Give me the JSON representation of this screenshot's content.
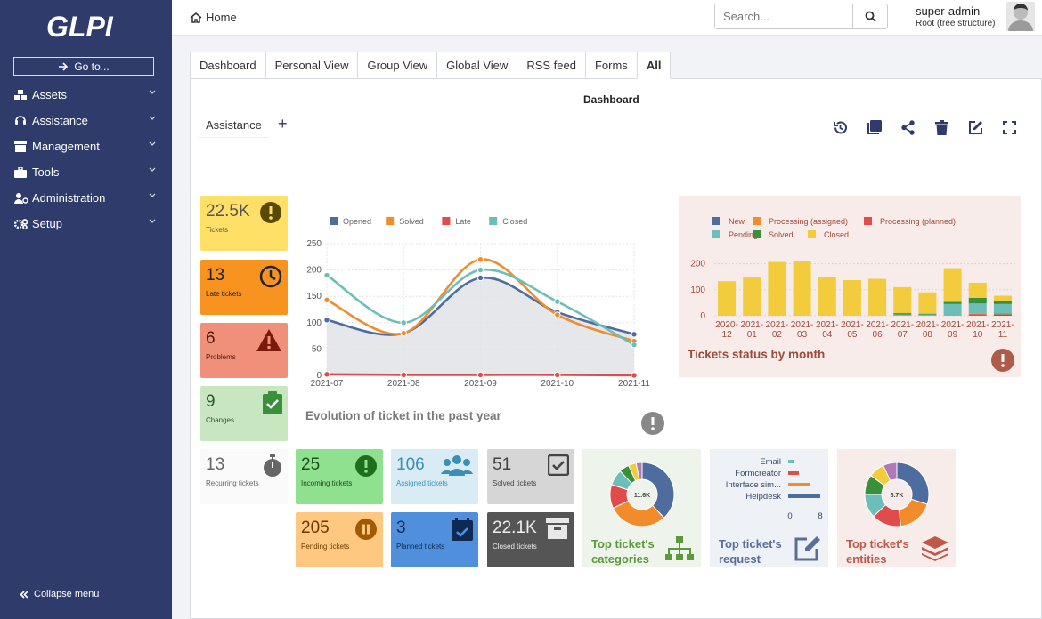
{
  "sidebar": {
    "logo_text": "GLPI",
    "goto_label": "Go to...",
    "items": [
      {
        "label": "Assets",
        "icon": "assets-icon"
      },
      {
        "label": "Assistance",
        "icon": "assistance-icon"
      },
      {
        "label": "Management",
        "icon": "management-icon"
      },
      {
        "label": "Tools",
        "icon": "tools-icon"
      },
      {
        "label": "Administration",
        "icon": "administration-icon"
      },
      {
        "label": "Setup",
        "icon": "setup-icon"
      }
    ],
    "collapse_label": "Collapse menu"
  },
  "topbar": {
    "breadcrumb": "Home",
    "search_placeholder": "Search...",
    "user_name": "super-admin",
    "user_entity": "Root (tree structure)"
  },
  "tabs": [
    "Dashboard",
    "Personal View",
    "Group View",
    "Global View",
    "RSS feed",
    "Forms",
    "All"
  ],
  "active_tab": "All",
  "dashboard": {
    "title": "Dashboard",
    "selected": "Assistance",
    "add_label": "+"
  },
  "tiles": {
    "tickets": {
      "value": "22.5K",
      "label": "Tickets",
      "color": "#ffe066"
    },
    "late": {
      "value": "13",
      "label": "Late tickets",
      "color": "#f7931e"
    },
    "problems": {
      "value": "6",
      "label": "Problems",
      "color": "#f0907b"
    },
    "changes": {
      "value": "9",
      "label": "Changes",
      "color": "#c8e6c0"
    },
    "recurring": {
      "value": "13",
      "label": "Recurring tickets",
      "color": "#fafafa"
    },
    "incoming": {
      "value": "25",
      "label": "Incoming tickets",
      "color": "#8fe08f"
    },
    "assigned": {
      "value": "106",
      "label": "Assigned tickets",
      "color": "#d9ecf5"
    },
    "solved": {
      "value": "51",
      "label": "Solved tickets",
      "color": "#d6d6d6"
    },
    "pending": {
      "value": "205",
      "label": "Pending tickets",
      "color": "#ffc880"
    },
    "planned": {
      "value": "3",
      "label": "Planned tickets",
      "color": "#4f8fdb"
    },
    "closed": {
      "value": "22.1K",
      "label": "Closed tickets",
      "color": "#555555"
    }
  },
  "chart_data": [
    {
      "type": "line",
      "title": "Evolution of ticket in the past year",
      "x": [
        "2021-07",
        "2021-08",
        "2021-09",
        "2021-10",
        "2021-11"
      ],
      "ylim": [
        0,
        250
      ],
      "yticks": [
        0,
        50,
        100,
        150,
        200,
        250
      ],
      "grid": true,
      "legend_position": "top",
      "series": [
        {
          "name": "Opened",
          "color": "#4e6d9e",
          "values": [
            105,
            80,
            185,
            120,
            78
          ]
        },
        {
          "name": "Solved",
          "color": "#f08c2c",
          "values": [
            143,
            80,
            220,
            115,
            65
          ]
        },
        {
          "name": "Late",
          "color": "#e04b4b",
          "values": [
            2,
            1,
            1,
            1,
            0
          ]
        },
        {
          "name": "Closed",
          "color": "#6cbfb8",
          "values": [
            190,
            100,
            200,
            140,
            58
          ]
        }
      ]
    },
    {
      "type": "bar",
      "title": "Tickets status by month",
      "categories": [
        "2020-12",
        "2021-01",
        "2021-02",
        "2021-03",
        "2021-04",
        "2021-05",
        "2021-06",
        "2021-07",
        "2021-08",
        "2021-09",
        "2021-10",
        "2021-11"
      ],
      "ylim": [
        0,
        250
      ],
      "yticks": [
        0,
        100,
        200
      ],
      "stacked": true,
      "legend_position": "top",
      "series": [
        {
          "name": "New",
          "color": "#4e6d9e",
          "values": [
            0,
            0,
            0,
            0,
            0,
            0,
            0,
            0,
            0,
            0,
            3,
            5
          ]
        },
        {
          "name": "Processing (assigned)",
          "color": "#f08c2c",
          "values": [
            0,
            0,
            0,
            0,
            0,
            0,
            0,
            0,
            0,
            0,
            2,
            3
          ]
        },
        {
          "name": "Processing (planned)",
          "color": "#e04b4b",
          "values": [
            0,
            0,
            0,
            0,
            0,
            0,
            0,
            0,
            0,
            0,
            2,
            2
          ]
        },
        {
          "name": "Pending",
          "color": "#6cbfb8",
          "values": [
            0,
            0,
            0,
            0,
            0,
            0,
            0,
            5,
            5,
            45,
            40,
            35
          ]
        },
        {
          "name": "Solved",
          "color": "#3a8f3a",
          "values": [
            0,
            0,
            0,
            0,
            0,
            0,
            0,
            5,
            3,
            8,
            22,
            12
          ]
        },
        {
          "name": "Closed",
          "color": "#f2cc3d",
          "values": [
            133,
            147,
            207,
            212,
            148,
            137,
            142,
            100,
            82,
            130,
            58,
            20
          ]
        }
      ]
    },
    {
      "type": "pie",
      "title": "Top ticket's categories",
      "center_label": "11.6K",
      "values": [
        0.38,
        0.3,
        0.12,
        0.08,
        0.05,
        0.04,
        0.03
      ],
      "colors": [
        "#4e6d9e",
        "#f08c2c",
        "#e04b4b",
        "#6cbfb8",
        "#3a8f3a",
        "#f2cc3d",
        "#b07ab8"
      ]
    },
    {
      "type": "bar",
      "title": "Top ticket's request",
      "orientation": "horizontal",
      "categories": [
        "Email",
        "Formcreator",
        "Interface sim...",
        "Helpdesk"
      ],
      "values": [
        1,
        2,
        4,
        6
      ],
      "xticks": [
        "0",
        "8"
      ]
    },
    {
      "type": "pie",
      "title": "Top ticket's entities",
      "center_label": "6.7K",
      "values": [
        0.3,
        0.18,
        0.15,
        0.12,
        0.1,
        0.08,
        0.07
      ],
      "colors": [
        "#4e6d9e",
        "#f08c2c",
        "#e04b4b",
        "#6cbfb8",
        "#3a8f3a",
        "#f2cc3d",
        "#b07ab8"
      ]
    }
  ]
}
